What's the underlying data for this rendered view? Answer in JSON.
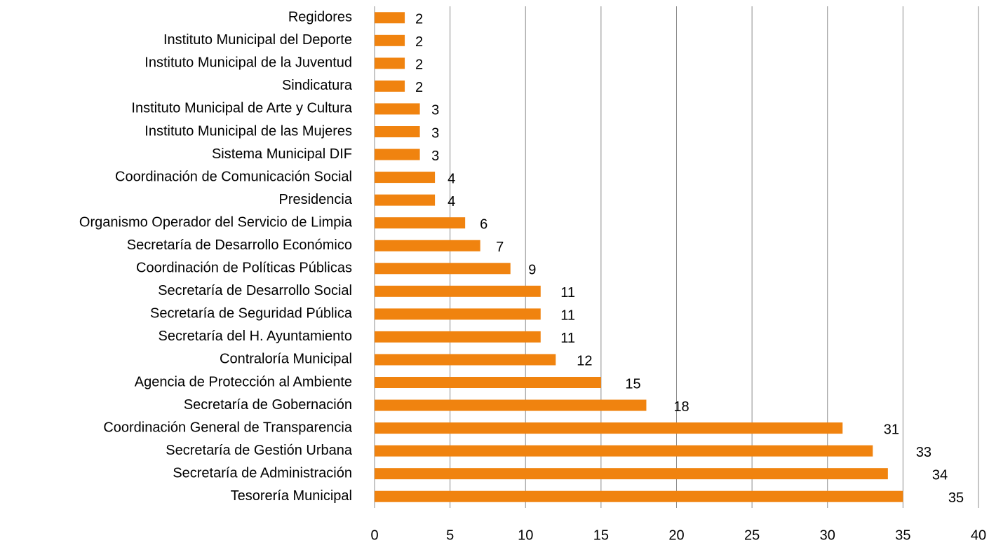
{
  "chart_data": {
    "type": "bar",
    "orientation": "horizontal",
    "categories": [
      "Regidores",
      "Instituto Municipal del Deporte",
      "Instituto Municipal de la Juventud",
      "Sindicatura",
      "Instituto Municipal de Arte y Cultura",
      "Instituto Municipal de las Mujeres",
      "Sistema Municipal DIF",
      "Coordinación de Comunicación Social",
      "Presidencia",
      "Organismo Operador del Servicio  de Limpia",
      "Secretaría de Desarrollo Económico",
      "Coordinación de Políticas Públicas",
      "Secretaría de Desarrollo Social",
      "Secretaría de Seguridad Pública",
      "Secretaría del H. Ayuntamiento",
      "Contraloría Municipal",
      "Agencia de Protección al Ambiente",
      "Secretaría de Gobernación",
      "Coordinación General de Transparencia",
      "Secretaría de Gestión Urbana",
      "Secretaría de Administración",
      "Tesorería Municipal"
    ],
    "values": [
      2,
      2,
      2,
      2,
      3,
      3,
      3,
      4,
      4,
      6,
      7,
      9,
      11,
      11,
      11,
      12,
      15,
      18,
      31,
      33,
      34,
      35
    ],
    "color": "#f0830f",
    "xlim": [
      0,
      40
    ],
    "xticks": [
      0,
      5,
      10,
      15,
      20,
      25,
      30,
      35,
      40
    ],
    "grid": true
  }
}
